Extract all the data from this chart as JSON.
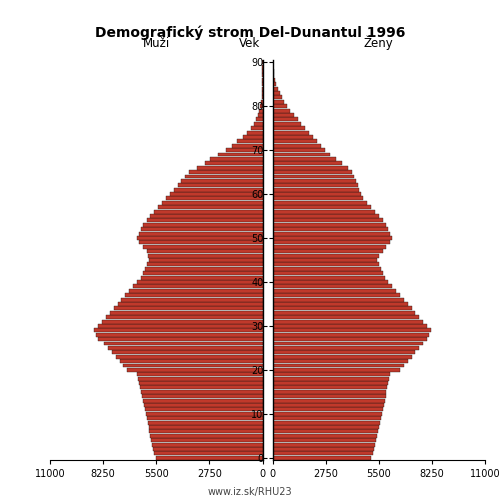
{
  "title": "Demografický strom Del-Dunantul 1996",
  "xlabel_left": "Muži",
  "xlabel_right": "Ženy",
  "ylabel": "Vek",
  "source": "www.iz.sk/RHU23",
  "bar_color": "#c0392b",
  "bar_edge_color": "#111111",
  "xlim": 11000,
  "xticks_left": [
    11000,
    8250,
    5500,
    2750,
    0
  ],
  "xticks_right": [
    0,
    2750,
    5500,
    8250,
    11000
  ],
  "xtick_labels_left": [
    "11000",
    "8250",
    "5500",
    "2750",
    "0"
  ],
  "xtick_labels_right": [
    "0",
    "2750",
    "5500",
    "8250",
    "11000"
  ],
  "background_color": "#ffffff",
  "males": [
    5500,
    5600,
    5650,
    5700,
    5750,
    5800,
    5850,
    5900,
    5950,
    6000,
    6050,
    6100,
    6150,
    6200,
    6250,
    6300,
    6350,
    6400,
    6450,
    6500,
    7000,
    7200,
    7400,
    7600,
    7800,
    8000,
    8200,
    8500,
    8600,
    8700,
    8500,
    8300,
    8100,
    7900,
    7700,
    7500,
    7300,
    7100,
    6900,
    6700,
    6500,
    6300,
    6200,
    6100,
    6000,
    5900,
    5950,
    6000,
    6200,
    6400,
    6500,
    6400,
    6300,
    6200,
    6000,
    5800,
    5600,
    5400,
    5200,
    5000,
    4800,
    4600,
    4400,
    4200,
    4000,
    3800,
    3400,
    3000,
    2700,
    2300,
    1900,
    1600,
    1300,
    1000,
    800,
    600,
    450,
    350,
    250,
    170,
    110,
    70,
    50,
    30,
    20,
    13,
    8,
    5,
    3,
    2,
    1
  ],
  "females": [
    5100,
    5200,
    5250,
    5300,
    5350,
    5400,
    5450,
    5500,
    5550,
    5600,
    5650,
    5700,
    5750,
    5800,
    5850,
    5900,
    5950,
    6000,
    6050,
    6100,
    6600,
    6800,
    7000,
    7200,
    7400,
    7600,
    7800,
    8000,
    8100,
    8200,
    8000,
    7800,
    7600,
    7400,
    7200,
    7000,
    6800,
    6600,
    6400,
    6200,
    6000,
    5800,
    5700,
    5600,
    5500,
    5400,
    5500,
    5700,
    5900,
    6100,
    6200,
    6100,
    6000,
    5900,
    5700,
    5500,
    5300,
    5100,
    4900,
    4700,
    4600,
    4500,
    4400,
    4300,
    4200,
    4100,
    3900,
    3600,
    3300,
    3000,
    2700,
    2500,
    2300,
    2100,
    1900,
    1700,
    1500,
    1300,
    1100,
    900,
    750,
    620,
    500,
    390,
    290,
    200,
    140,
    90,
    55,
    30,
    15
  ]
}
